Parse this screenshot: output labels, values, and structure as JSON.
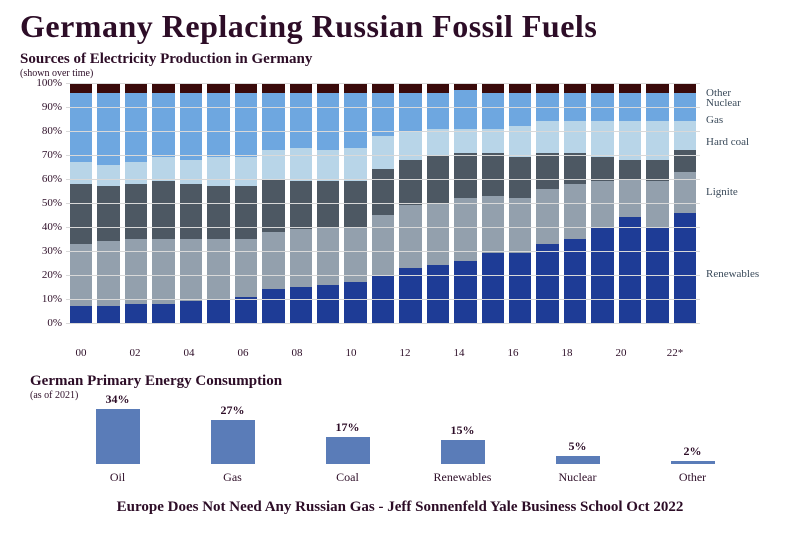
{
  "title": "Germany Replacing Russian Fossil Fuels",
  "chart1": {
    "type": "stacked-bar",
    "subtitle": "Sources of Electricity Production in Germany",
    "subnote": "(shown over time)",
    "ylim": [
      0,
      100
    ],
    "ytick_step": 10,
    "ytick_suffix": "%",
    "grid_color": "#d9d9d9",
    "background": "#ffffff",
    "years": [
      "00",
      "",
      "02",
      "",
      "04",
      "",
      "06",
      "",
      "08",
      "",
      "10",
      "",
      "12",
      "",
      "14",
      "",
      "16",
      "",
      "18",
      "",
      "20",
      "",
      "22*"
    ],
    "series_order": [
      "renewables",
      "lignite",
      "hardcoal",
      "gas",
      "nuclear",
      "other"
    ],
    "series_colors": {
      "renewables": "#1e3c96",
      "lignite": "#93a0ad",
      "hardcoal": "#4d5863",
      "gas": "#b8d5e8",
      "nuclear": "#6ea7e0",
      "other": "#3a0a0a"
    },
    "legend_labels": {
      "other": "Other",
      "nuclear": "Nuclear",
      "gas": "Gas",
      "hardcoal": "Hard coal",
      "lignite": "Lignite",
      "renewables": "Renewables"
    },
    "legend_y_pct": {
      "other": 1.5,
      "nuclear": 6,
      "gas": 13,
      "hardcoal": 22,
      "lignite": 43,
      "renewables": 77
    },
    "stacks": [
      {
        "renewables": 7,
        "lignite": 26,
        "hardcoal": 25,
        "gas": 9,
        "nuclear": 29,
        "other": 4
      },
      {
        "renewables": 7,
        "lignite": 27,
        "hardcoal": 23,
        "gas": 9,
        "nuclear": 30,
        "other": 4
      },
      {
        "renewables": 8,
        "lignite": 27,
        "hardcoal": 23,
        "gas": 9,
        "nuclear": 29,
        "other": 4
      },
      {
        "renewables": 8,
        "lignite": 27,
        "hardcoal": 24,
        "gas": 10,
        "nuclear": 27,
        "other": 4
      },
      {
        "renewables": 9,
        "lignite": 26,
        "hardcoal": 23,
        "gas": 10,
        "nuclear": 28,
        "other": 4
      },
      {
        "renewables": 10,
        "lignite": 25,
        "hardcoal": 22,
        "gas": 12,
        "nuclear": 27,
        "other": 4
      },
      {
        "renewables": 11,
        "lignite": 24,
        "hardcoal": 22,
        "gas": 12,
        "nuclear": 27,
        "other": 4
      },
      {
        "renewables": 14,
        "lignite": 24,
        "hardcoal": 22,
        "gas": 12,
        "nuclear": 24,
        "other": 4
      },
      {
        "renewables": 15,
        "lignite": 24,
        "hardcoal": 20,
        "gas": 14,
        "nuclear": 23,
        "other": 4
      },
      {
        "renewables": 16,
        "lignite": 24,
        "hardcoal": 19,
        "gas": 13,
        "nuclear": 24,
        "other": 4
      },
      {
        "renewables": 17,
        "lignite": 23,
        "hardcoal": 19,
        "gas": 14,
        "nuclear": 23,
        "other": 4
      },
      {
        "renewables": 20,
        "lignite": 25,
        "hardcoal": 19,
        "gas": 14,
        "nuclear": 18,
        "other": 4
      },
      {
        "renewables": 23,
        "lignite": 26,
        "hardcoal": 19,
        "gas": 12,
        "nuclear": 16,
        "other": 4
      },
      {
        "renewables": 24,
        "lignite": 26,
        "hardcoal": 20,
        "gas": 11,
        "nuclear": 15,
        "other": 4
      },
      {
        "renewables": 26,
        "lignite": 26,
        "hardcoal": 19,
        "gas": 10,
        "nuclear": 16,
        "other": 3
      },
      {
        "renewables": 29,
        "lignite": 24,
        "hardcoal": 18,
        "gas": 10,
        "nuclear": 15,
        "other": 4
      },
      {
        "renewables": 29,
        "lignite": 23,
        "hardcoal": 17,
        "gas": 13,
        "nuclear": 14,
        "other": 4
      },
      {
        "renewables": 33,
        "lignite": 23,
        "hardcoal": 15,
        "gas": 13,
        "nuclear": 12,
        "other": 4
      },
      {
        "renewables": 35,
        "lignite": 23,
        "hardcoal": 13,
        "gas": 13,
        "nuclear": 12,
        "other": 4
      },
      {
        "renewables": 40,
        "lignite": 19,
        "hardcoal": 10,
        "gas": 15,
        "nuclear": 12,
        "other": 4
      },
      {
        "renewables": 44,
        "lignite": 16,
        "hardcoal": 8,
        "gas": 16,
        "nuclear": 12,
        "other": 4
      },
      {
        "renewables": 40,
        "lignite": 19,
        "hardcoal": 9,
        "gas": 16,
        "nuclear": 12,
        "other": 4
      },
      {
        "renewables": 46,
        "lignite": 17,
        "hardcoal": 9,
        "gas": 12,
        "nuclear": 12,
        "other": 4
      }
    ]
  },
  "chart2": {
    "type": "bar",
    "subtitle": "German Primary Energy Consumption",
    "subnote": "(as of 2021)",
    "bar_color": "#5a7cb8",
    "max_pct": 34,
    "items": [
      {
        "label": "Oil",
        "value": 34,
        "text": "34%"
      },
      {
        "label": "Gas",
        "value": 27,
        "text": "27%"
      },
      {
        "label": "Coal",
        "value": 17,
        "text": "17%"
      },
      {
        "label": "Renewables",
        "value": 15,
        "text": "15%"
      },
      {
        "label": "Nuclear",
        "value": 5,
        "text": "5%"
      },
      {
        "label": "Other",
        "value": 2,
        "text": "2%"
      }
    ]
  },
  "footer": "Europe Does Not Need Any Russian Gas - Jeff Sonnenfeld Yale Business School Oct 2022"
}
